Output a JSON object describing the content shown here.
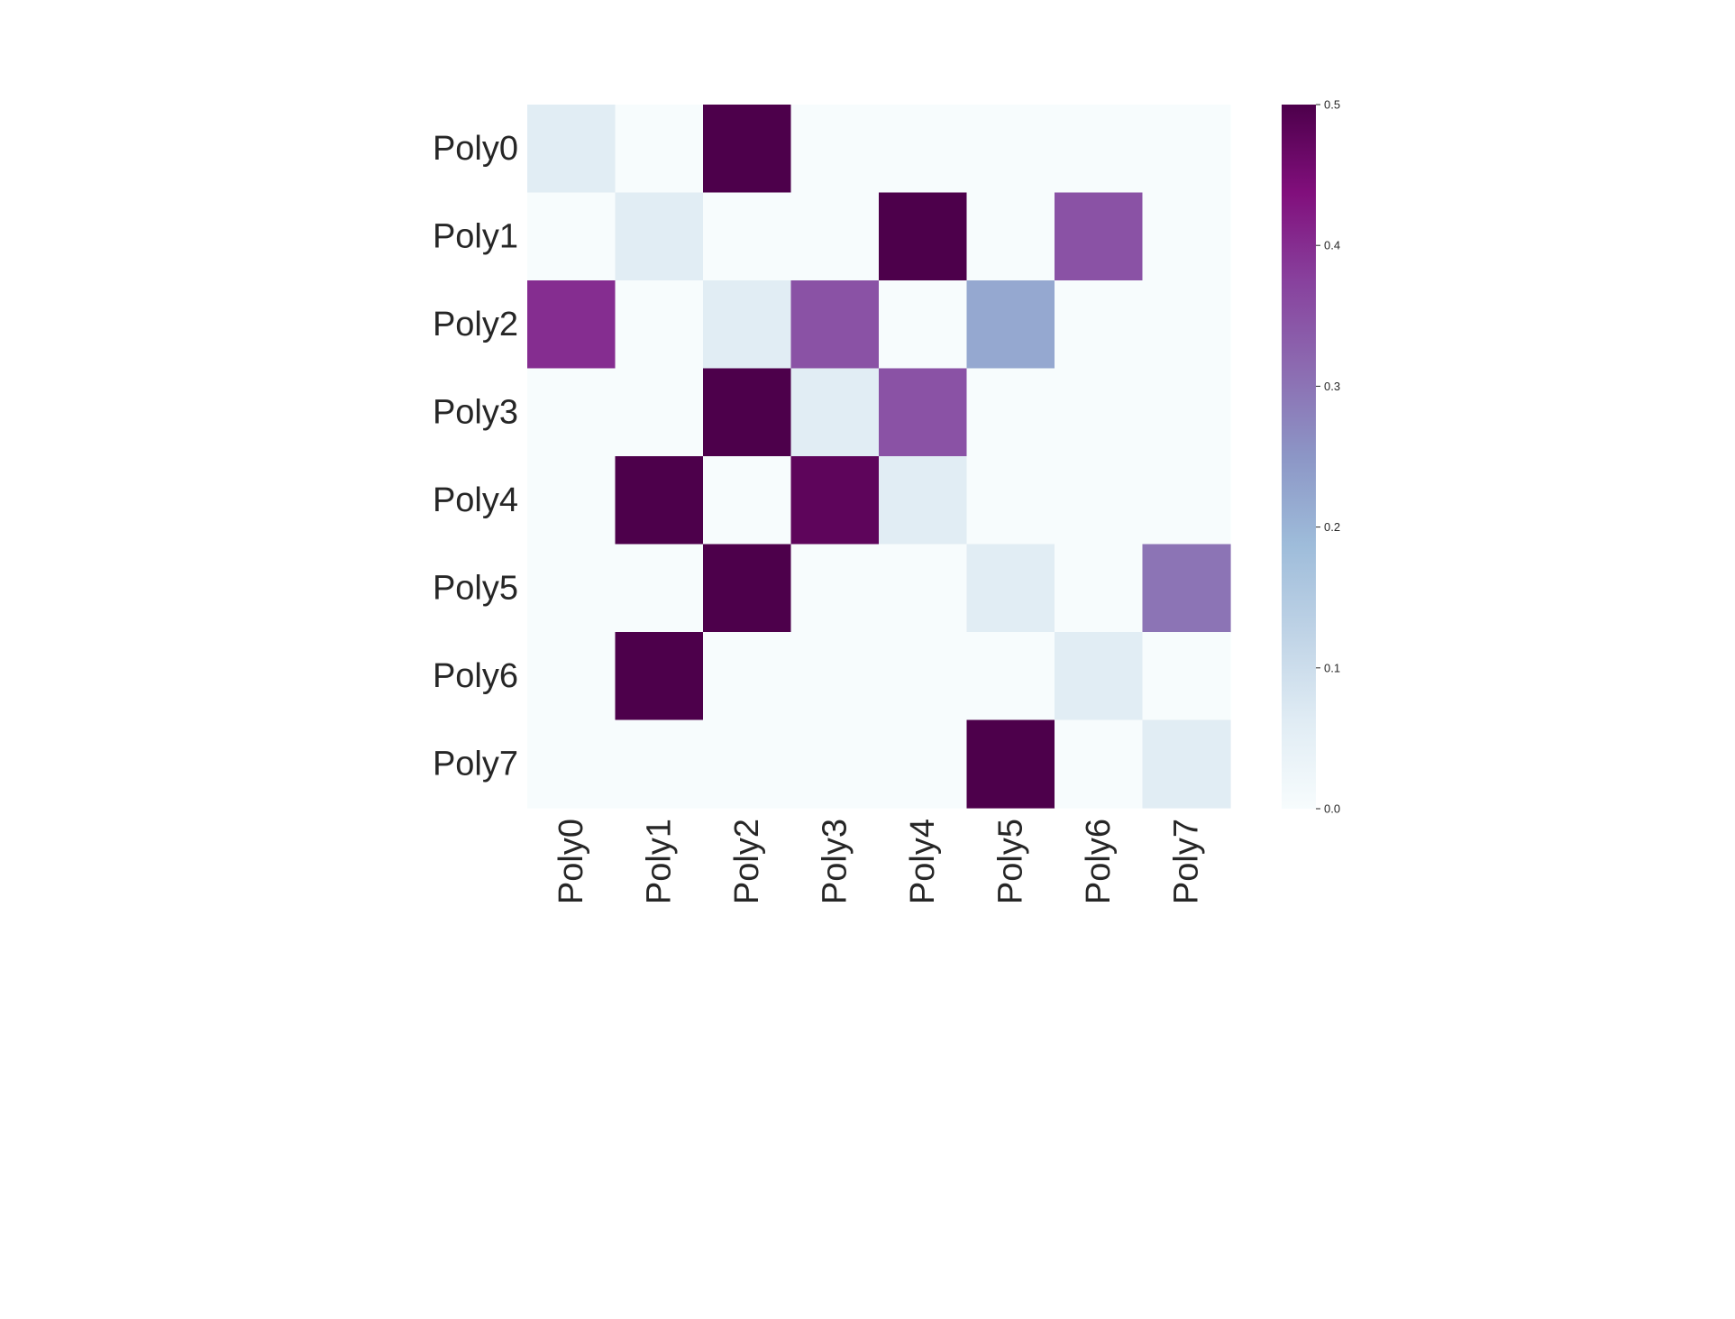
{
  "chart_data": {
    "type": "heatmap",
    "title": "",
    "xlabel": "",
    "ylabel": "",
    "rows": [
      "Poly0",
      "Poly1",
      "Poly2",
      "Poly3",
      "Poly4",
      "Poly5",
      "Poly6",
      "Poly7"
    ],
    "columns": [
      "Poly0",
      "Poly1",
      "Poly2",
      "Poly3",
      "Poly4",
      "Poly5",
      "Poly6",
      "Poly7"
    ],
    "values": [
      [
        0.06,
        0.0,
        0.5,
        0.0,
        0.0,
        0.0,
        0.0,
        0.0
      ],
      [
        0.0,
        0.06,
        0.0,
        0.0,
        0.5,
        0.0,
        0.35,
        0.0
      ],
      [
        0.4,
        0.0,
        0.06,
        0.35,
        0.0,
        0.22,
        0.0,
        0.0
      ],
      [
        0.0,
        0.0,
        0.5,
        0.06,
        0.35,
        0.0,
        0.0,
        0.0
      ],
      [
        0.0,
        0.5,
        0.0,
        0.48,
        0.06,
        0.0,
        0.0,
        0.0
      ],
      [
        0.0,
        0.0,
        0.5,
        0.0,
        0.0,
        0.06,
        0.0,
        0.3
      ],
      [
        0.0,
        0.5,
        0.0,
        0.0,
        0.0,
        0.0,
        0.06,
        0.0
      ],
      [
        0.0,
        0.0,
        0.0,
        0.0,
        0.0,
        0.5,
        0.0,
        0.06
      ]
    ],
    "colorbar": {
      "range": [
        0.0,
        0.5
      ],
      "ticks": [
        "0.0",
        "0.1",
        "0.2",
        "0.3",
        "0.4",
        "0.5"
      ],
      "colormap": "BuPu",
      "colors": [
        "#f7fcfd",
        "#e0ecf4",
        "#bfd3e6",
        "#9ebcda",
        "#8c96c6",
        "#8c6bb1",
        "#88419d",
        "#810f7c",
        "#4d004b"
      ]
    },
    "grid": false,
    "x_tick_rotation": "vertical"
  }
}
